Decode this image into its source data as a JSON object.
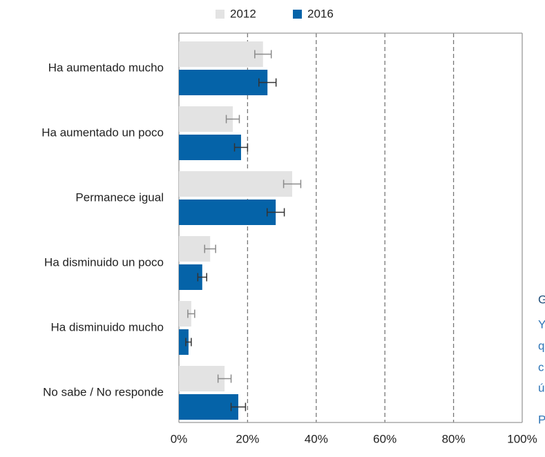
{
  "chart_data": {
    "type": "bar",
    "orientation": "horizontal",
    "categories": [
      "Ha aumentado mucho",
      "Ha aumentado un poco",
      "Permanece igual",
      "Ha disminuido un poco",
      "Ha disminuido mucho",
      "No sabe / No responde"
    ],
    "series": [
      {
        "name": "2012",
        "color": "#e3e3e3",
        "error_color": "#8a8a8a",
        "values": [
          24.5,
          15.7,
          33,
          9.1,
          3.6,
          13.3
        ],
        "errors": [
          2.4,
          1.9,
          2.5,
          1.6,
          1.0,
          1.9
        ]
      },
      {
        "name": "2016",
        "color": "#0563a8",
        "error_color": "#333333",
        "values": [
          25.8,
          18.1,
          28.2,
          6.8,
          2.8,
          17.3
        ],
        "errors": [
          2.5,
          1.9,
          2.5,
          1.3,
          0.8,
          2.1
        ]
      }
    ],
    "xlim": [
      0,
      100
    ],
    "xticks": [
      {
        "value": 0,
        "label": "0%"
      },
      {
        "value": 20,
        "label": "20%"
      },
      {
        "value": 40,
        "label": "40%"
      },
      {
        "value": 60,
        "label": "60%"
      },
      {
        "value": 80,
        "label": "80%"
      },
      {
        "value": 100,
        "label": "100%"
      }
    ],
    "grid": true,
    "legend": "top",
    "annotations": [
      "G",
      "Y",
      "q",
      "c",
      "ú",
      "P"
    ]
  }
}
